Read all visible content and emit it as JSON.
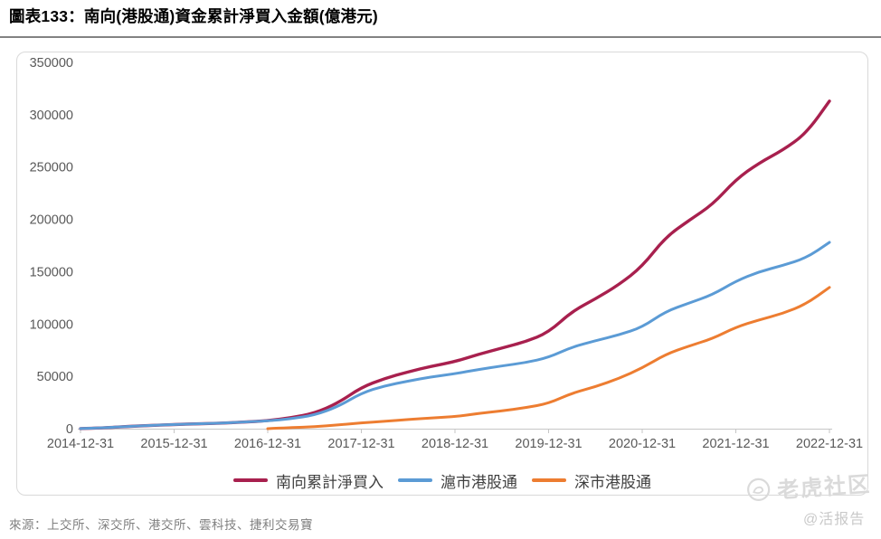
{
  "header": {
    "title": "圖表133：南向(港股通)資金累計淨買入金額(億港元)"
  },
  "footer": {
    "source": "來源：上交所、深交所、港交所、雲科技、捷利交易寶",
    "watermark_brand": "老虎社区",
    "watermark_handle": "@活报告"
  },
  "chart_data": {
    "type": "line",
    "title": "南向(港股通)資金累計淨買入金額",
    "unit": "億港元",
    "grid": false,
    "legend_position": "bottom",
    "ylim": [
      0,
      350000
    ],
    "y_ticks": [
      0,
      50000,
      100000,
      150000,
      200000,
      250000,
      300000,
      350000
    ],
    "x_range_years": [
      0,
      8
    ],
    "x_tick_positions": [
      0,
      1,
      2,
      3,
      4,
      5,
      6,
      7,
      8
    ],
    "x_tick_labels": [
      "2014-12-31",
      "2015-12-31",
      "2016-12-31",
      "2017-12-31",
      "2018-12-31",
      "2019-12-31",
      "2020-12-31",
      "2021-12-31",
      "2022-12-31"
    ],
    "axis_color": "#c6c6c6",
    "tick_label_color": "#595959",
    "series": [
      {
        "name": "南向累計淨買入",
        "color": "#A8204E",
        "x": [
          0,
          0.25,
          0.5,
          0.75,
          1,
          1.25,
          1.5,
          1.75,
          2,
          2.25,
          2.5,
          2.75,
          3,
          3.25,
          3.5,
          3.75,
          4,
          4.25,
          4.5,
          4.75,
          5,
          5.25,
          5.5,
          5.75,
          6,
          6.25,
          6.5,
          6.75,
          7,
          7.25,
          7.5,
          7.75,
          8
        ],
        "values": [
          100,
          700,
          2200,
          3000,
          4000,
          4600,
          5300,
          6300,
          7500,
          10500,
          14800,
          24500,
          39500,
          48000,
          54300,
          59700,
          64000,
          71000,
          77000,
          83000,
          92000,
          112000,
          124000,
          137500,
          155000,
          183000,
          199000,
          214000,
          238000,
          254000,
          266000,
          282000,
          313000
        ]
      },
      {
        "name": "滬市港股通",
        "color": "#5B9BD5",
        "x": [
          0,
          0.25,
          0.5,
          0.75,
          1,
          1.25,
          1.5,
          1.75,
          2,
          2.25,
          2.5,
          2.75,
          3,
          3.25,
          3.5,
          3.75,
          4,
          4.25,
          4.5,
          4.75,
          5,
          5.25,
          5.5,
          5.75,
          6,
          6.25,
          6.5,
          6.75,
          7,
          7.25,
          7.5,
          7.75,
          8
        ],
        "values": [
          100,
          700,
          2200,
          3000,
          4000,
          4600,
          5300,
          6300,
          7500,
          9500,
          13000,
          21000,
          34000,
          41000,
          45500,
          49500,
          52500,
          56500,
          60000,
          63000,
          68000,
          78000,
          84000,
          89500,
          97000,
          112000,
          120000,
          128000,
          141000,
          150000,
          156000,
          163000,
          178000
        ]
      },
      {
        "name": "深市港股通",
        "color": "#ED7D31",
        "x": [
          2,
          2.25,
          2.5,
          2.75,
          3,
          3.25,
          3.5,
          3.75,
          4,
          4.25,
          4.5,
          4.75,
          5,
          5.25,
          5.5,
          5.75,
          6,
          6.25,
          6.5,
          6.75,
          7,
          7.25,
          7.5,
          7.75,
          8
        ],
        "values": [
          0,
          1000,
          1800,
          3500,
          5500,
          7000,
          8800,
          10200,
          11500,
          14500,
          17000,
          20000,
          24000,
          34000,
          40000,
          48000,
          58000,
          71000,
          79000,
          86000,
          97000,
          104000,
          110000,
          119000,
          135000
        ]
      }
    ]
  }
}
